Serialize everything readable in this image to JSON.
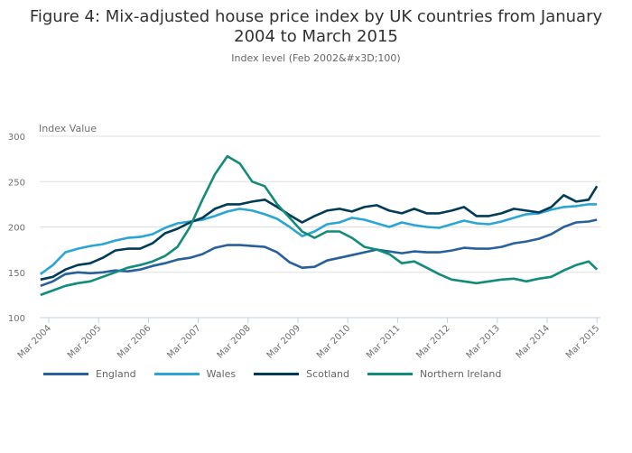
{
  "chart_data": {
    "type": "line",
    "title": "Figure 4: Mix-adjusted house price index by UK countries from January 2004 to March 2015",
    "subtitle": "Index level (Feb 2002&#x3D;100)",
    "ylabel": "Index Value",
    "xlabel": "",
    "ylim": [
      100,
      300
    ],
    "yticks": [
      100,
      150,
      200,
      250,
      300
    ],
    "xticks": [
      "Mar 2004",
      "Mar 2005",
      "Mar 2006",
      "Mar 2007",
      "Mar 2008",
      "Mar 2009",
      "Mar 2010",
      "Mar 2011",
      "Mar 2012",
      "Mar 2013",
      "Mar 2014",
      "Mar 2015"
    ],
    "grid": true,
    "legend": "bottom",
    "x": [
      "2004-01",
      "2004-04",
      "2004-07",
      "2004-10",
      "2005-01",
      "2005-04",
      "2005-07",
      "2005-10",
      "2006-01",
      "2006-04",
      "2006-07",
      "2006-10",
      "2007-01",
      "2007-04",
      "2007-07",
      "2007-10",
      "2008-01",
      "2008-04",
      "2008-07",
      "2008-10",
      "2009-01",
      "2009-04",
      "2009-07",
      "2009-10",
      "2010-01",
      "2010-04",
      "2010-07",
      "2010-10",
      "2011-01",
      "2011-04",
      "2011-07",
      "2011-10",
      "2012-01",
      "2012-04",
      "2012-07",
      "2012-10",
      "2013-01",
      "2013-04",
      "2013-07",
      "2013-10",
      "2014-01",
      "2014-04",
      "2014-07",
      "2014-10",
      "2015-01",
      "2015-03"
    ],
    "series": [
      {
        "name": "England",
        "color": "#27609d",
        "values": [
          135,
          140,
          148,
          150,
          149,
          150,
          152,
          151,
          153,
          157,
          160,
          164,
          166,
          170,
          177,
          180,
          180,
          179,
          178,
          172,
          161,
          155,
          156,
          163,
          166,
          169,
          172,
          175,
          173,
          171,
          173,
          172,
          172,
          174,
          177,
          176,
          176,
          178,
          182,
          184,
          187,
          192,
          200,
          205,
          206,
          208
        ]
      },
      {
        "name": "Wales",
        "color": "#2aa5d5",
        "values": [
          148,
          158,
          172,
          176,
          179,
          181,
          185,
          188,
          189,
          192,
          199,
          204,
          206,
          208,
          212,
          217,
          220,
          218,
          214,
          209,
          200,
          190,
          195,
          203,
          205,
          210,
          208,
          204,
          200,
          205,
          202,
          200,
          199,
          203,
          207,
          204,
          203,
          206,
          210,
          214,
          215,
          219,
          222,
          223,
          225,
          225
        ]
      },
      {
        "name": "Scotland",
        "color": "#003c57",
        "values": [
          142,
          145,
          153,
          158,
          160,
          166,
          174,
          176,
          176,
          182,
          193,
          198,
          205,
          210,
          220,
          225,
          225,
          228,
          230,
          222,
          213,
          205,
          212,
          218,
          220,
          217,
          222,
          224,
          218,
          215,
          220,
          215,
          215,
          218,
          222,
          212,
          212,
          215,
          220,
          218,
          216,
          222,
          235,
          228,
          230,
          245
        ]
      },
      {
        "name": "Northern Ireland",
        "color": "#118c7b",
        "values": [
          125,
          130,
          135,
          138,
          140,
          145,
          150,
          155,
          158,
          162,
          168,
          178,
          200,
          230,
          258,
          278,
          270,
          250,
          245,
          225,
          210,
          195,
          188,
          195,
          195,
          188,
          178,
          175,
          170,
          160,
          162,
          155,
          148,
          142,
          140,
          138,
          140,
          142,
          143,
          140,
          143,
          145,
          152,
          158,
          162,
          153
        ]
      }
    ]
  }
}
